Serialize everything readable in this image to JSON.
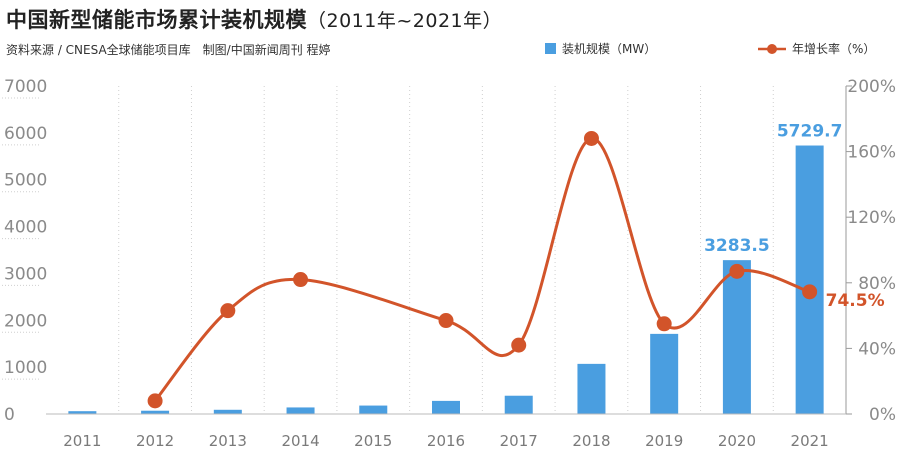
{
  "header": {
    "title": "中国新型储能市场累计装机规模",
    "title_range": "（2011年~2021年）",
    "source": "资料来源 / CNESA全球储能项目库　制图/中国新闻周刊 程婷"
  },
  "legend": {
    "bar_label": "装机规模（MW）",
    "line_label": "年增长率（%）"
  },
  "colors": {
    "bar": "#4a9ee0",
    "line": "#d2542a",
    "axis_text": "#8a8a8a",
    "grid": "#cfcfcf"
  },
  "chart_data": {
    "type": "bar",
    "categories": [
      "2011",
      "2012",
      "2013",
      "2014",
      "2015",
      "2016",
      "2017",
      "2018",
      "2019",
      "2020",
      "2021"
    ],
    "series": [
      {
        "name": "装机规模（MW）",
        "type": "bar",
        "axis": "left",
        "values": [
          60,
          70,
          90,
          140,
          180,
          280,
          390,
          1070,
          1710,
          3283.5,
          5729.7
        ]
      },
      {
        "name": "年增长率（%）",
        "type": "line",
        "axis": "right",
        "values": [
          null,
          8,
          63,
          82,
          null,
          57,
          42,
          168,
          55,
          87,
          74.5
        ]
      }
    ],
    "y_left": {
      "range": [
        0,
        7000
      ],
      "ticks": [
        "0",
        "1000",
        "2000",
        "3000",
        "4000",
        "5000",
        "6000",
        "7000"
      ]
    },
    "y_right": {
      "range": [
        0,
        200
      ],
      "ticks": [
        "0%",
        "40%",
        "80%",
        "120%",
        "160%",
        "200%"
      ]
    },
    "annotations": [
      {
        "category": "2020",
        "series": "bar",
        "text": "3283.5"
      },
      {
        "category": "2021",
        "series": "bar",
        "text": "5729.7"
      },
      {
        "category": "2021",
        "series": "line",
        "text": "74.5%"
      }
    ]
  }
}
